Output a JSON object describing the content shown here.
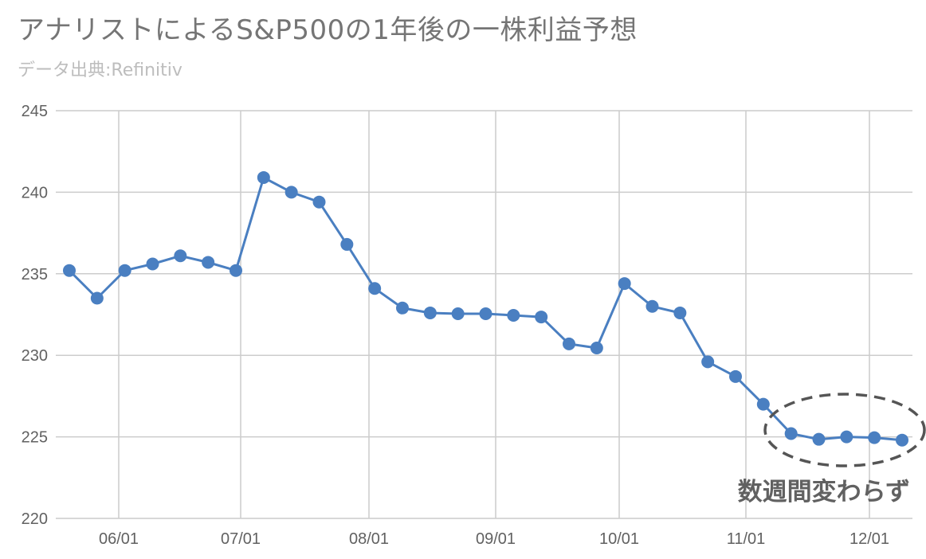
{
  "chart_data": {
    "type": "line",
    "title": "アナリストによるS&P500の1年後の一株利益予想",
    "subtitle": "データ出典:Refinitiv",
    "xlabel": "",
    "ylabel": "",
    "ylim": [
      220,
      245
    ],
    "yticks": [
      220,
      225,
      230,
      235,
      240,
      245
    ],
    "xticks": [
      "06/01",
      "07/01",
      "08/01",
      "09/01",
      "10/01",
      "11/01",
      "12/01"
    ],
    "grid": true,
    "colors": {
      "line": "#4a7fc1",
      "grid": "#cccccc",
      "annotation": "#555555"
    },
    "series": [
      {
        "values": [
          235.2,
          233.5,
          235.2,
          235.6,
          236.1,
          235.7,
          235.2,
          240.9,
          240.0,
          239.4,
          236.8,
          234.1,
          232.9,
          232.6,
          232.55,
          232.55,
          232.45,
          232.35,
          230.7,
          230.45,
          234.4,
          233.0,
          232.6,
          229.6,
          228.7,
          227.0,
          225.2,
          224.85,
          225.0,
          224.95,
          224.8
        ]
      }
    ],
    "annotation": {
      "text": "数週間変わらず"
    }
  }
}
